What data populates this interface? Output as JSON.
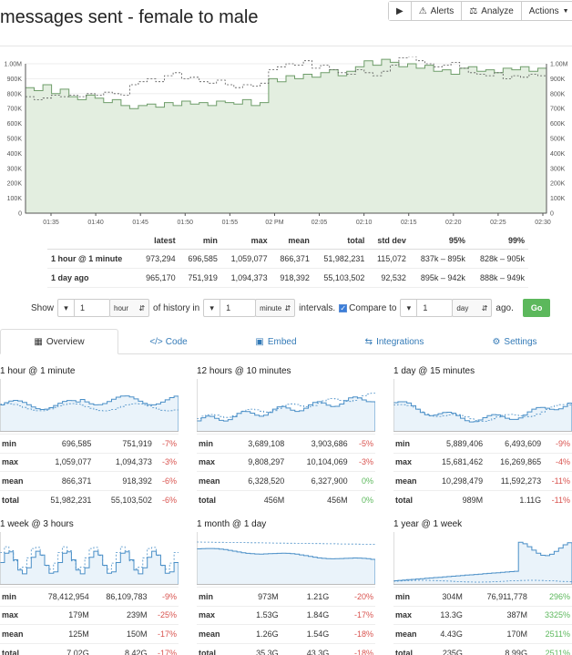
{
  "page": {
    "title": "messages sent - female to male"
  },
  "toolbar": {
    "play_label": "",
    "alerts_label": "Alerts",
    "analyze_label": "Analyze",
    "actions_label": "Actions"
  },
  "chart_data": {
    "type": "line",
    "y_ticks": [
      "0",
      "100K",
      "200K",
      "300K",
      "400K",
      "500K",
      "600K",
      "700K",
      "800K",
      "900K",
      "1.00M"
    ],
    "x_ticks": [
      "01:35",
      "01:40",
      "01:45",
      "01:50",
      "01:55",
      "02 PM",
      "02:05",
      "02:10",
      "02:15",
      "02:20",
      "02:25",
      "02:30"
    ],
    "ylim": [
      0,
      1000000
    ],
    "series": [
      {
        "values": [
          840000,
          820000,
          860000,
          800000,
          830000,
          780000,
          760000,
          790000,
          770000,
          740000,
          760000,
          720000,
          700000,
          720000,
          730000,
          710000,
          740000,
          720000,
          750000,
          730000,
          740000,
          720000,
          750000,
          740000,
          730000,
          760000,
          720000,
          740000,
          900000,
          880000,
          920000,
          900000,
          930000,
          910000,
          940000,
          960000,
          920000,
          950000,
          980000,
          1020000,
          990000,
          1030000,
          1010000,
          980000,
          1000000,
          970000,
          990000,
          950000,
          960000,
          930000,
          970000,
          980000,
          950000,
          960000,
          940000,
          970000,
          960000,
          980000,
          950000,
          970000
        ]
      },
      {
        "values": [
          780000,
          760000,
          770000,
          790000,
          780000,
          790000,
          780000,
          800000,
          790000,
          810000,
          800000,
          790000,
          860000,
          880000,
          900000,
          880000,
          920000,
          940000,
          900000,
          910000,
          880000,
          870000,
          890000,
          860000,
          840000,
          860000,
          850000,
          870000,
          960000,
          980000,
          1000000,
          990000,
          1020000,
          970000,
          990000,
          960000,
          940000,
          930000,
          960000,
          940000,
          920000,
          950000,
          990000,
          1040000,
          1050000,
          1020000,
          1000000,
          980000,
          990000,
          1010000,
          970000,
          940000,
          930000,
          920000,
          940000,
          900000,
          920000,
          910000,
          930000,
          920000
        ]
      }
    ]
  },
  "stats": {
    "headers": [
      "latest",
      "min",
      "max",
      "mean",
      "total",
      "std dev",
      "95%",
      "99%"
    ],
    "rows": [
      {
        "label": "1 hour @ 1 minute",
        "cells": [
          "973,294",
          "696,585",
          "1,059,077",
          "866,371",
          "51,982,231",
          "115,072",
          "837k – 895k",
          "828k – 905k"
        ]
      },
      {
        "label": "1 day ago",
        "cells": [
          "965,170",
          "751,919",
          "1,094,373",
          "918,392",
          "55,103,502",
          "92,532",
          "895k – 942k",
          "888k – 949k"
        ]
      }
    ]
  },
  "controls": {
    "show_label": "Show",
    "history_value": "1",
    "history_unit": "hour",
    "history_in_label": "of history in",
    "interval_value": "1",
    "interval_unit": "minute",
    "intervals_label": "intervals.",
    "compare_label": "Compare to",
    "compare_value": "1",
    "compare_unit": "day",
    "ago_label": "ago.",
    "go_label": "Go"
  },
  "tabs": [
    {
      "label": "Overview",
      "icon": "grid-icon"
    },
    {
      "label": "Code",
      "icon": "code-icon"
    },
    {
      "label": "Embed",
      "icon": "image-icon"
    },
    {
      "label": "Integrations",
      "icon": "exchange-icon"
    },
    {
      "label": "Settings",
      "icon": "gear-icon"
    }
  ],
  "panels": [
    {
      "title": "1 hour @ 1 minute",
      "rows": [
        {
          "label": "min",
          "a": "696,585",
          "b": "751,919",
          "pct": "-7%",
          "sign": "neg"
        },
        {
          "label": "max",
          "a": "1,059,077",
          "b": "1,094,373",
          "pct": "-3%",
          "sign": "neg"
        },
        {
          "label": "mean",
          "a": "866,371",
          "b": "918,392",
          "pct": "-6%",
          "sign": "neg"
        },
        {
          "label": "total",
          "a": "51,982,231",
          "b": "55,103,502",
          "pct": "-6%",
          "sign": "neg"
        }
      ]
    },
    {
      "title": "12 hours @ 10 minutes",
      "rows": [
        {
          "label": "min",
          "a": "3,689,108",
          "b": "3,903,686",
          "pct": "-5%",
          "sign": "neg"
        },
        {
          "label": "max",
          "a": "9,808,297",
          "b": "10,104,069",
          "pct": "-3%",
          "sign": "neg"
        },
        {
          "label": "mean",
          "a": "6,328,520",
          "b": "6,327,900",
          "pct": "0%",
          "sign": "zero"
        },
        {
          "label": "total",
          "a": "456M",
          "b": "456M",
          "pct": "0%",
          "sign": "zero"
        }
      ]
    },
    {
      "title": "1 day @ 15 minutes",
      "rows": [
        {
          "label": "min",
          "a": "5,889,406",
          "b": "6,493,609",
          "pct": "-9%",
          "sign": "neg"
        },
        {
          "label": "max",
          "a": "15,681,462",
          "b": "16,269,865",
          "pct": "-4%",
          "sign": "neg"
        },
        {
          "label": "mean",
          "a": "10,298,479",
          "b": "11,592,273",
          "pct": "-11%",
          "sign": "neg"
        },
        {
          "label": "total",
          "a": "989M",
          "b": "1.11G",
          "pct": "-11%",
          "sign": "neg"
        }
      ]
    },
    {
      "title": "1 week @ 3 hours",
      "rows": [
        {
          "label": "min",
          "a": "78,412,954",
          "b": "86,109,783",
          "pct": "-9%",
          "sign": "neg"
        },
        {
          "label": "max",
          "a": "179M",
          "b": "239M",
          "pct": "-25%",
          "sign": "neg"
        },
        {
          "label": "mean",
          "a": "125M",
          "b": "150M",
          "pct": "-17%",
          "sign": "neg"
        },
        {
          "label": "total",
          "a": "7.02G",
          "b": "8.42G",
          "pct": "-17%",
          "sign": "neg"
        }
      ]
    },
    {
      "title": "1 month @ 1 day",
      "rows": [
        {
          "label": "min",
          "a": "973M",
          "b": "1.21G",
          "pct": "-20%",
          "sign": "neg"
        },
        {
          "label": "max",
          "a": "1.53G",
          "b": "1.84G",
          "pct": "-17%",
          "sign": "neg"
        },
        {
          "label": "mean",
          "a": "1.26G",
          "b": "1.54G",
          "pct": "-18%",
          "sign": "neg"
        },
        {
          "label": "total",
          "a": "35.3G",
          "b": "43.3G",
          "pct": "-18%",
          "sign": "neg"
        }
      ]
    },
    {
      "title": "1 year @ 1 week",
      "rows": [
        {
          "label": "min",
          "a": "304M",
          "b": "76,911,778",
          "pct": "296%",
          "sign": "pos"
        },
        {
          "label": "max",
          "a": "13.3G",
          "b": "387M",
          "pct": "3325%",
          "sign": "pos"
        },
        {
          "label": "mean",
          "a": "4.43G",
          "b": "170M",
          "pct": "2511%",
          "sign": "pos"
        },
        {
          "label": "total",
          "a": "235G",
          "b": "8.99G",
          "pct": "2511%",
          "sign": "pos"
        }
      ]
    }
  ],
  "colors": {
    "area_fill": "#e3eee0",
    "area_line": "#6f9d6a",
    "compare_line": "#555555",
    "spark_line": "#4a8fc7",
    "spark_fill": "#eaf3fa"
  }
}
